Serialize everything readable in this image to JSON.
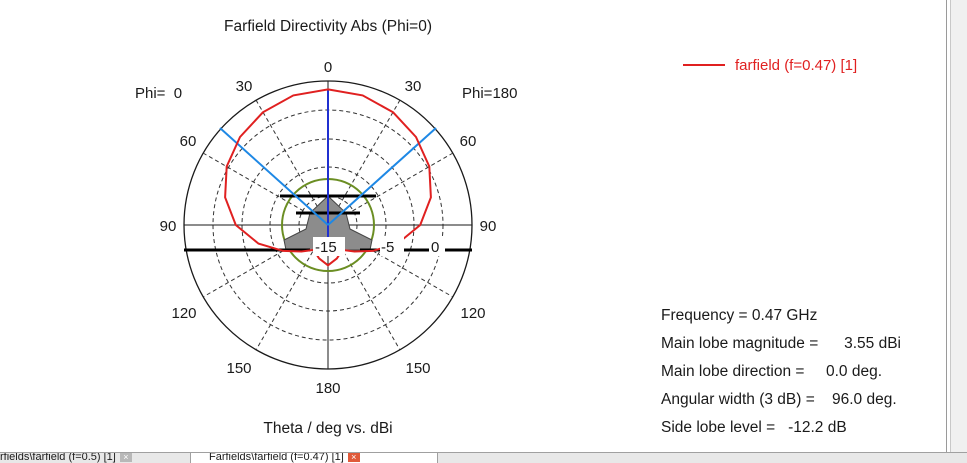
{
  "plot": {
    "title": "Farfield Directivity Abs (Phi=0)",
    "xlabel": "Theta / deg vs. dBi",
    "phi_left": "Phi=  0",
    "phi_right": "Phi=180",
    "angle_labels": {
      "top": "0",
      "upper30_left": "30",
      "upper30_right": "30",
      "upper60_left": "60",
      "upper60_right": "60",
      "mid90_left": "90",
      "mid90_right": "90",
      "lower120_left": "120",
      "lower120_right": "120",
      "lower150_left": "150",
      "lower150_right": "150",
      "bottom": "180"
    },
    "radial_labels": {
      "inner": "-15",
      "mid": "-5",
      "outer": "0"
    }
  },
  "legend": {
    "label": "farfield (f=0.47) [1]",
    "color": "#e02020"
  },
  "stats": {
    "frequency": "Frequency = 0.47 GHz",
    "main_lobe_magnitude": "Main lobe magnitude =      3.55 dBi",
    "main_lobe_direction": "Main lobe direction =     0.0 deg.",
    "angular_width": "Angular width (3 dB) =    96.0 deg.",
    "side_lobe_level": "Side lobe level =   -12.2 dB"
  },
  "tabs": [
    {
      "label": "rfields\\farfield (f=0.5) [1]",
      "close": "×"
    },
    {
      "label": "Farfields\\farfield (f=0.47) [1]",
      "close": "×"
    }
  ],
  "chart_data": {
    "type": "polar",
    "title": "Farfield Directivity Abs (Phi=0)",
    "xlabel": "Theta / deg vs. dBi",
    "r_ticks": [
      "-15",
      "-5",
      "0"
    ],
    "theta_ticks_deg": [
      0,
      30,
      60,
      90,
      120,
      150,
      180
    ],
    "series": [
      {
        "name": "farfield (f=0.47) [1]",
        "color": "#e02020",
        "theta_deg": [
          0,
          15,
          30,
          45,
          60,
          75,
          90,
          105,
          120,
          135,
          150,
          165,
          180
        ],
        "value_dBi": [
          3.55,
          3.3,
          2.6,
          1.6,
          0.3,
          -1.5,
          -4.0,
          -7.5,
          -11.0,
          -13.5,
          -15.0,
          -14.0,
          -13.0
        ]
      }
    ],
    "main_lobe_direction_deg": 0.0,
    "angular_width_3dB_deg": 96.0,
    "side_lobe_level_dB": -12.2,
    "frequency_GHz": 0.47
  }
}
